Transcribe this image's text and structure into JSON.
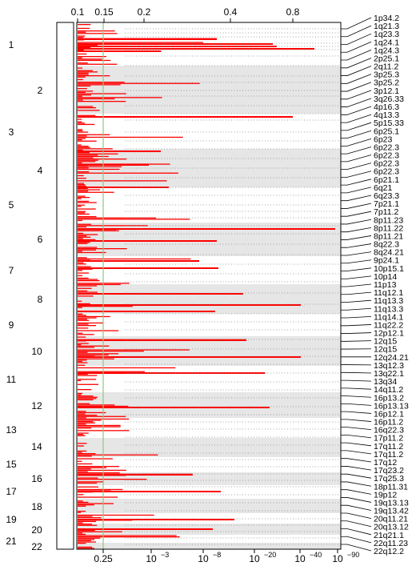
{
  "chart_data": {
    "type": "bar",
    "orientation": "horizontal",
    "top_axis_ticks": [
      "0.1",
      "0.15",
      "0.2",
      "0.4",
      "0.8"
    ],
    "bottom_axis_ticks": [
      "0.25",
      "10",
      "10",
      "10",
      "10",
      "10"
    ],
    "bottom_axis_exponents": [
      "",
      "−3",
      "−8",
      "−20",
      "−40",
      "−90"
    ],
    "threshold_line": {
      "color": "#90c878",
      "label_top": "0.15",
      "label_bottom": "0.25"
    },
    "chromosomes": [
      "1",
      "2",
      "3",
      "4",
      "5",
      "6",
      "7",
      "8",
      "9",
      "10",
      "11",
      "12",
      "13",
      "14",
      "15",
      "16",
      "17",
      "18",
      "19",
      "20",
      "21",
      "22"
    ],
    "cytobands": [
      "1p34.2",
      "1q21.3",
      "1q23.3",
      "1q24.1",
      "1q24.3",
      "2p25.1",
      "2q11.2",
      "3p25.3",
      "3p25.2",
      "3p12.1",
      "3q26.33",
      "4p16.3",
      "4q13.3",
      "5p15.33",
      "6p25.1",
      "6p23",
      "6p22.3",
      "6p22.3",
      "6p22.3",
      "6p22.3",
      "6p21.1",
      "6q21",
      "6q23.3",
      "7p21.1",
      "7p11.2",
      "8p11.23",
      "8p11.22",
      "8p11.21",
      "8q22.3",
      "8q24.21",
      "9p24.1",
      "10p15.1",
      "10p14",
      "11p13",
      "11q12.1",
      "11q13.3",
      "11q13.3",
      "11q14.1",
      "11q22.2",
      "12p12.1",
      "12q15",
      "12q15",
      "12q24.21",
      "13q12.3",
      "13q22.1",
      "13q34",
      "14q11.2",
      "16p13.2",
      "16p13.13",
      "16p12.1",
      "16p11.2",
      "16q22.3",
      "17p11.2",
      "17q11.2",
      "17q11.2",
      "17q12",
      "17q23.2",
      "17q25.3",
      "18p11.31",
      "19p12",
      "19q13.13",
      "19q13.42",
      "20q11.21",
      "20q13.12",
      "21q21.1",
      "22q11.23",
      "22q12.2"
    ],
    "colors": {
      "bars": "#ff0000",
      "band_shade": "#e6e6e6",
      "threshold": "#90c878"
    },
    "grid": false,
    "legend": "none"
  }
}
